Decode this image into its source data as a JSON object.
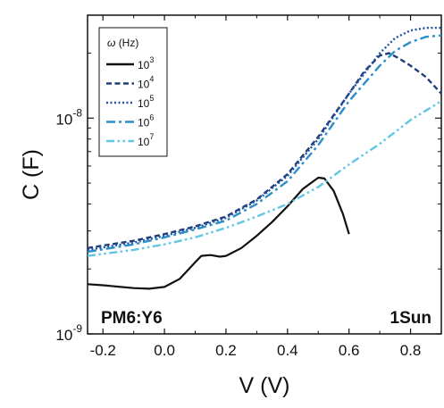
{
  "chart_data": {
    "type": "line",
    "xlabel": "V (V)",
    "ylabel": "C (F)",
    "xlim": [
      -0.25,
      0.9
    ],
    "ylim": [
      1e-09,
      3e-08
    ],
    "y_scale": "log",
    "grid": false,
    "x_ticks": [
      "-0.2",
      "0.0",
      "0.2",
      "0.4",
      "0.6",
      "0.8"
    ],
    "y_ticks": [
      {
        "base": "10",
        "exp": "-9"
      },
      {
        "base": "10",
        "exp": "-8"
      }
    ],
    "legend": {
      "placement": "top-left",
      "title_symbol": "ω",
      "title_unit": "(Hz)",
      "entries": [
        {
          "base": "10",
          "exp": "3"
        },
        {
          "base": "10",
          "exp": "4"
        },
        {
          "base": "10",
          "exp": "5"
        },
        {
          "base": "10",
          "exp": "6"
        },
        {
          "base": "10",
          "exp": "7"
        }
      ]
    },
    "annotations": [
      "PM6:Y6",
      "1Sun"
    ],
    "series": [
      {
        "color": "#111111",
        "dash": "solid",
        "x": [
          -0.25,
          -0.2,
          -0.1,
          -0.05,
          0.0,
          0.05,
          0.1,
          0.12,
          0.15,
          0.18,
          0.2,
          0.25,
          0.3,
          0.35,
          0.4,
          0.45,
          0.5,
          0.52,
          0.55,
          0.58,
          0.6
        ],
        "y": [
          1.7e-09,
          1.68e-09,
          1.63e-09,
          1.62e-09,
          1.65e-09,
          1.8e-09,
          2.15e-09,
          2.3e-09,
          2.32e-09,
          2.28e-09,
          2.3e-09,
          2.5e-09,
          2.85e-09,
          3.3e-09,
          3.9e-09,
          4.7e-09,
          5.3e-09,
          5.25e-09,
          4.6e-09,
          3.6e-09,
          2.9e-09
        ]
      },
      {
        "color": "#1f3f7a",
        "dash": "dashed",
        "x": [
          -0.25,
          -0.1,
          0.0,
          0.1,
          0.2,
          0.3,
          0.4,
          0.5,
          0.6,
          0.65,
          0.7,
          0.73,
          0.76,
          0.8,
          0.85,
          0.9
        ],
        "y": [
          2.5e-09,
          2.7e-09,
          2.9e-09,
          3.15e-09,
          3.5e-09,
          4.2e-09,
          5.5e-09,
          8.2e-09,
          1.3e-08,
          1.65e-08,
          1.95e-08,
          2e-08,
          1.9e-08,
          1.75e-08,
          1.55e-08,
          1.3e-08
        ]
      },
      {
        "color": "#2250a0",
        "dash": "dotted",
        "x": [
          -0.25,
          -0.1,
          0.0,
          0.1,
          0.2,
          0.3,
          0.4,
          0.5,
          0.6,
          0.7,
          0.75,
          0.8,
          0.85,
          0.9
        ],
        "y": [
          2.45e-09,
          2.65e-09,
          2.85e-09,
          3.1e-09,
          3.45e-09,
          4.15e-09,
          5.4e-09,
          8e-09,
          1.3e-08,
          2e-08,
          2.35e-08,
          2.55e-08,
          2.62e-08,
          2.62e-08
        ]
      },
      {
        "color": "#2a8ec8",
        "dash": "dashdot",
        "x": [
          -0.25,
          -0.1,
          0.0,
          0.1,
          0.2,
          0.3,
          0.4,
          0.5,
          0.6,
          0.7,
          0.75,
          0.8,
          0.85,
          0.9
        ],
        "y": [
          2.4e-09,
          2.6e-09,
          2.8e-09,
          3.05e-09,
          3.35e-09,
          4e-09,
          5.1e-09,
          7.5e-09,
          1.2e-08,
          1.75e-08,
          2.05e-08,
          2.25e-08,
          2.38e-08,
          2.42e-08
        ]
      },
      {
        "color": "#5fc6e6",
        "dash": "dashdotdot",
        "x": [
          -0.25,
          -0.1,
          0.0,
          0.1,
          0.2,
          0.3,
          0.4,
          0.5,
          0.6,
          0.7,
          0.8,
          0.9
        ],
        "y": [
          2.3e-09,
          2.45e-09,
          2.6e-09,
          2.8e-09,
          3.1e-09,
          3.5e-09,
          4e-09,
          4.8e-09,
          6.1e-09,
          7.6e-09,
          9.8e-09,
          1.2e-08
        ]
      }
    ]
  }
}
